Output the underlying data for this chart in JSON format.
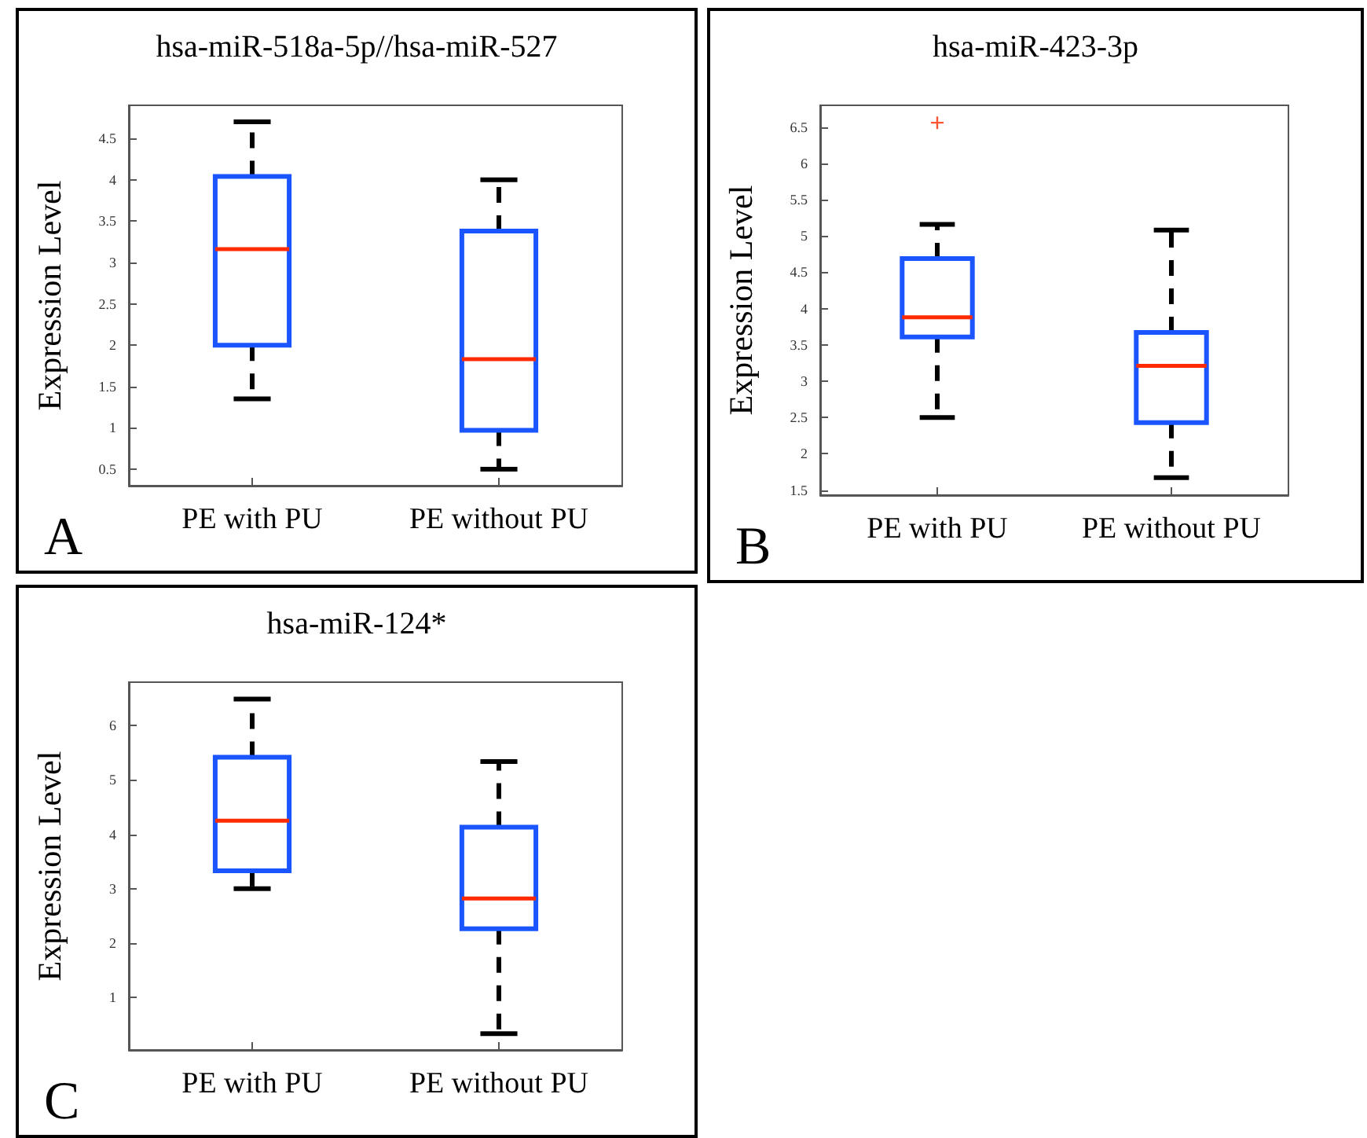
{
  "chart_data": [
    {
      "type": "box",
      "title": "hsa-miR-518a-5p//hsa-miR-527",
      "ylabel": "Expression Level",
      "annotations": [
        "A"
      ],
      "categories": [
        "PE with PU",
        "PE without PU"
      ],
      "ylim": [
        0.3,
        4.9
      ],
      "yticks": [
        0.5,
        1,
        1.5,
        2,
        2.5,
        3,
        3.5,
        4,
        4.5
      ],
      "grid": false,
      "series": [
        {
          "color": "#1a55ff",
          "boxes": [
            {
              "low": 1.35,
              "q1": 2.0,
              "median": 3.16,
              "q3": 4.04,
              "high": 4.7
            },
            {
              "low": 0.5,
              "q1": 0.97,
              "median": 1.83,
              "q3": 3.38,
              "high": 4.0
            }
          ]
        }
      ]
    },
    {
      "type": "box",
      "title": "hsa-miR-423-3p",
      "ylabel": "Expression Level",
      "annotations": [
        "B"
      ],
      "categories": [
        "PE with PU",
        "PE without PU"
      ],
      "ylim": [
        1.43,
        6.8
      ],
      "yticks": [
        1.5,
        2,
        2.5,
        3,
        3.5,
        4,
        4.5,
        5,
        5.5,
        6,
        6.5
      ],
      "grid": false,
      "series": [
        {
          "color": "#1a55ff",
          "boxes": [
            {
              "low": 2.5,
              "q1": 3.61,
              "median": 3.88,
              "q3": 4.69,
              "high": 5.16,
              "outliers": [
                6.56
              ]
            },
            {
              "low": 1.67,
              "q1": 2.43,
              "median": 3.21,
              "q3": 3.67,
              "high": 5.08
            }
          ]
        }
      ]
    },
    {
      "type": "box",
      "title": "hsa-miR-124*",
      "ylabel": "Expression Level",
      "annotations": [
        "C"
      ],
      "categories": [
        "PE with PU",
        "PE without PU"
      ],
      "ylim": [
        0.03,
        6.8
      ],
      "yticks": [
        1,
        2,
        3,
        4,
        5,
        6
      ],
      "grid": false,
      "series": [
        {
          "color": "#1a55ff",
          "boxes": [
            {
              "low": 3.0,
              "q1": 3.33,
              "median": 4.25,
              "q3": 5.42,
              "high": 6.49
            },
            {
              "low": 0.33,
              "q1": 2.26,
              "median": 2.82,
              "q3": 4.13,
              "high": 5.34
            }
          ]
        }
      ]
    }
  ]
}
